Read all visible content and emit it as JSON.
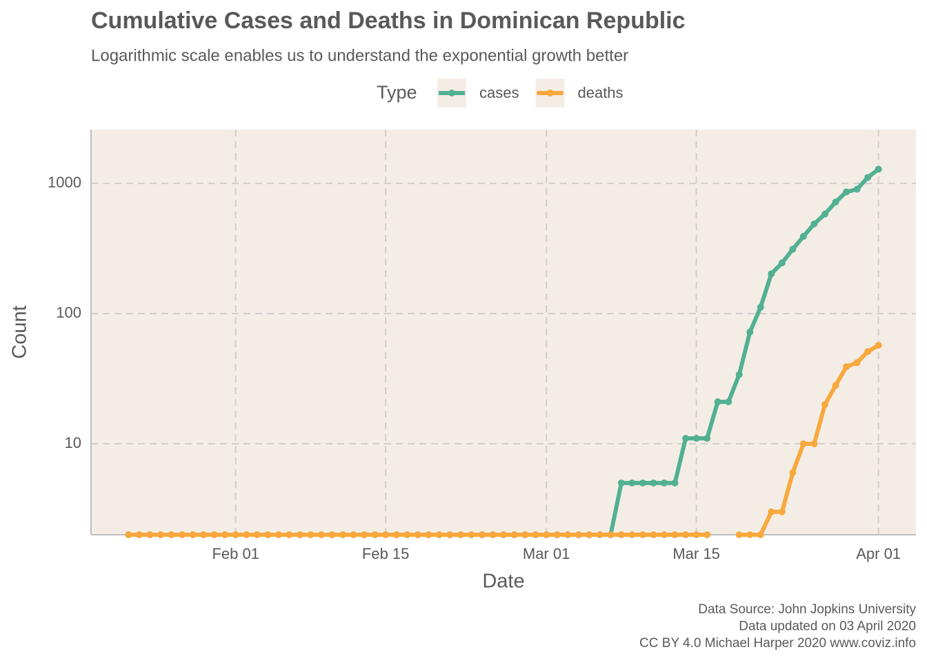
{
  "chart_data": {
    "type": "line",
    "title": "Cumulative Cases and Deaths in Dominican Republic",
    "subtitle": "Logarithmic scale enables us to understand the exponential growth better",
    "legend_title": "Type",
    "legend_position": "top",
    "x_label": "Date",
    "y_label": "Count",
    "caption": [
      "Data Source: John Jopkins University",
      "Data updated on 03 April 2020",
      "CC BY 4.0 Michael Harper 2020 www.coviz.info"
    ],
    "x": [
      "Jan 22",
      "Jan 23",
      "Jan 24",
      "Jan 25",
      "Jan 26",
      "Jan 27",
      "Jan 28",
      "Jan 29",
      "Jan 30",
      "Jan 31",
      "Feb 01",
      "Feb 02",
      "Feb 03",
      "Feb 04",
      "Feb 05",
      "Feb 06",
      "Feb 07",
      "Feb 08",
      "Feb 09",
      "Feb 10",
      "Feb 11",
      "Feb 12",
      "Feb 13",
      "Feb 14",
      "Feb 15",
      "Feb 16",
      "Feb 17",
      "Feb 18",
      "Feb 19",
      "Feb 20",
      "Feb 21",
      "Feb 22",
      "Feb 23",
      "Feb 24",
      "Feb 25",
      "Feb 26",
      "Feb 27",
      "Feb 28",
      "Feb 29",
      "Mar 01",
      "Mar 02",
      "Mar 03",
      "Mar 04",
      "Mar 05",
      "Mar 06",
      "Mar 07",
      "Mar 08",
      "Mar 09",
      "Mar 10",
      "Mar 11",
      "Mar 12",
      "Mar 13",
      "Mar 14",
      "Mar 15",
      "Mar 16",
      "Mar 17",
      "Mar 18",
      "Mar 19",
      "Mar 20",
      "Mar 21",
      "Mar 22",
      "Mar 23",
      "Mar 24",
      "Mar 25",
      "Mar 26",
      "Mar 27",
      "Mar 28",
      "Mar 29",
      "Mar 30",
      "Mar 31",
      "Apr 01"
    ],
    "xticks": [
      "Feb 01",
      "Feb 15",
      "Mar 01",
      "Mar 15",
      "Apr 01"
    ],
    "series": [
      {
        "name": "cases",
        "color": "#52b093",
        "values": [
          0,
          0,
          0,
          0,
          0,
          0,
          0,
          0,
          0,
          0,
          0,
          0,
          0,
          0,
          0,
          0,
          0,
          0,
          0,
          0,
          0,
          0,
          0,
          0,
          0,
          0,
          0,
          0,
          0,
          0,
          0,
          0,
          0,
          0,
          0,
          0,
          0,
          0,
          0,
          0,
          0,
          0,
          0,
          0,
          0,
          0,
          5,
          5,
          5,
          5,
          5,
          5,
          11,
          11,
          11,
          21,
          21,
          34,
          72,
          112,
          202,
          245,
          312,
          392,
          488,
          581,
          719,
          859,
          901,
          1109,
          1284
        ]
      },
      {
        "name": "deaths",
        "color": "#f8a83c",
        "values": [
          0,
          0,
          0,
          0,
          0,
          0,
          0,
          0,
          0,
          0,
          0,
          0,
          0,
          0,
          0,
          0,
          0,
          0,
          0,
          0,
          0,
          0,
          0,
          0,
          0,
          0,
          0,
          0,
          0,
          0,
          0,
          0,
          0,
          0,
          0,
          0,
          0,
          0,
          0,
          0,
          0,
          0,
          0,
          0,
          0,
          0,
          0,
          0,
          0,
          0,
          0,
          0,
          0,
          0,
          0,
          null,
          null,
          0,
          0,
          0,
          3,
          3,
          6,
          10,
          10,
          20,
          28,
          39,
          42,
          51,
          57
        ]
      }
    ],
    "log_y": true,
    "ylim": [
      2,
      2590
    ],
    "yticks": [
      10,
      100,
      1000
    ],
    "grid": true
  }
}
